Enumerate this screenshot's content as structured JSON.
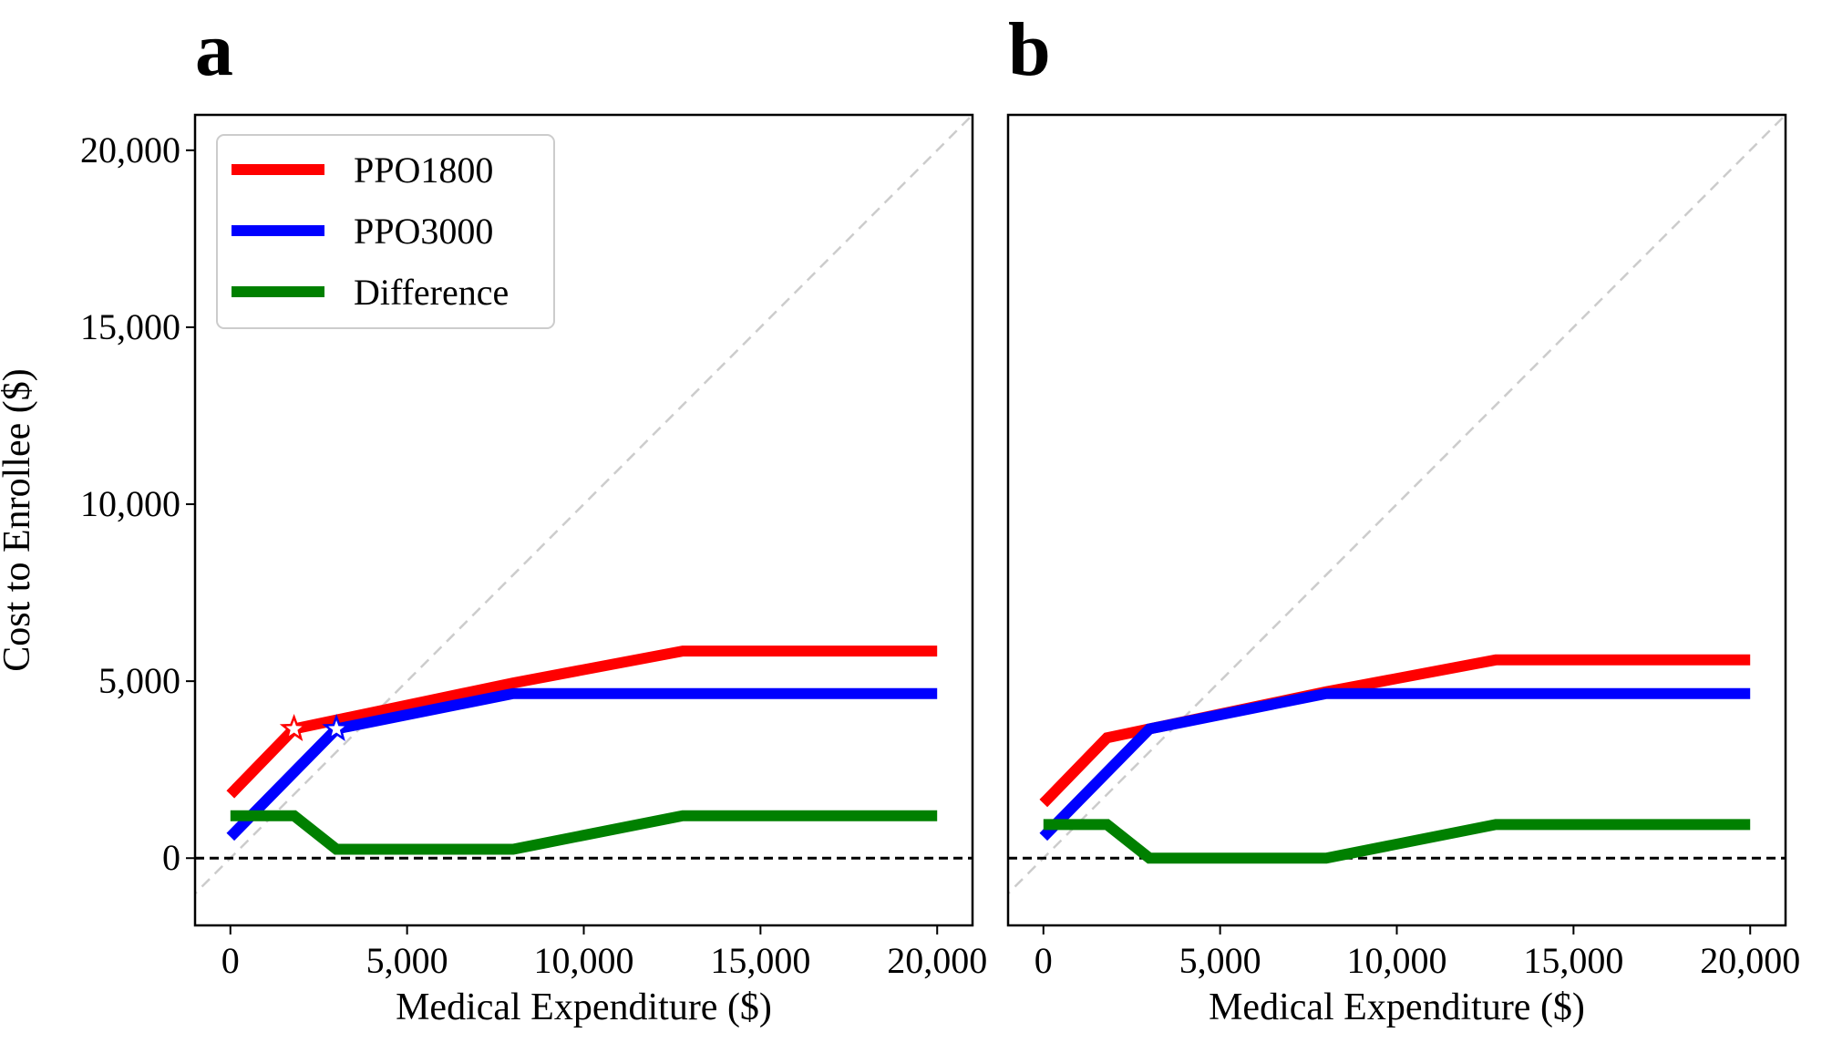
{
  "chart_data": [
    {
      "type": "line",
      "panel_label": "a",
      "xlabel": "Medical Expenditure ($)",
      "ylabel": "Cost to Enrollee ($)",
      "xlim": [
        -1000,
        21000
      ],
      "ylim": [
        -1900,
        21000
      ],
      "x_ticks": [
        0,
        5000,
        10000,
        15000,
        20000
      ],
      "x_tick_labels": [
        "0",
        "5,000",
        "10,000",
        "15,000",
        "20,000"
      ],
      "y_ticks": [
        0,
        5000,
        10000,
        15000,
        20000
      ],
      "y_tick_labels": [
        "0",
        "5,000",
        "10,000",
        "15,000",
        "20,000"
      ],
      "grid": false,
      "legend": {
        "placement": "upper-left"
      },
      "reference_lines": [
        {
          "kind": "diagonal",
          "style": "dashed",
          "color": "#cccccc"
        },
        {
          "kind": "horizontal",
          "y": 0,
          "style": "dashed",
          "color": "#000000"
        }
      ],
      "series": [
        {
          "name": "PPO1800",
          "color": "#ff0000",
          "x": [
            0,
            1800,
            8000,
            12800,
            20000
          ],
          "y": [
            1800,
            3650,
            4950,
            5850,
            5850
          ]
        },
        {
          "name": "PPO3000",
          "color": "#0000ff",
          "x": [
            0,
            3000,
            8000,
            20000
          ],
          "y": [
            600,
            3650,
            4650,
            4650
          ]
        },
        {
          "name": "Difference",
          "color": "#008000",
          "x": [
            0,
            1800,
            3000,
            8000,
            12800,
            20000
          ],
          "y": [
            1200,
            1200,
            250,
            250,
            1200,
            1200
          ]
        }
      ],
      "markers": [
        {
          "shape": "star",
          "x": 1800,
          "y": 3650,
          "color": "#ff0000"
        },
        {
          "shape": "star",
          "x": 3000,
          "y": 3650,
          "color": "#0000ff"
        }
      ]
    },
    {
      "type": "line",
      "panel_label": "b",
      "xlabel": "Medical Expenditure ($)",
      "ylabel": "",
      "xlim": [
        -1000,
        21000
      ],
      "ylim": [
        -1900,
        21000
      ],
      "x_ticks": [
        0,
        5000,
        10000,
        15000,
        20000
      ],
      "x_tick_labels": [
        "0",
        "5,000",
        "10,000",
        "15,000",
        "20,000"
      ],
      "y_ticks": [],
      "y_tick_labels": [],
      "grid": false,
      "reference_lines": [
        {
          "kind": "diagonal",
          "style": "dashed",
          "color": "#cccccc"
        },
        {
          "kind": "horizontal",
          "y": 0,
          "style": "dashed",
          "color": "#000000"
        }
      ],
      "series": [
        {
          "color": "#ff0000",
          "x": [
            0,
            1800,
            8000,
            12800,
            20000
          ],
          "y": [
            1550,
            3400,
            4700,
            5600,
            5600
          ]
        },
        {
          "color": "#0000ff",
          "x": [
            0,
            3000,
            8000,
            20000
          ],
          "y": [
            600,
            3650,
            4650,
            4650
          ]
        },
        {
          "color": "#008000",
          "x": [
            0,
            1800,
            3000,
            8000,
            12800,
            20000
          ],
          "y": [
            950,
            950,
            0,
            0,
            950,
            950
          ]
        }
      ],
      "markers": []
    }
  ]
}
